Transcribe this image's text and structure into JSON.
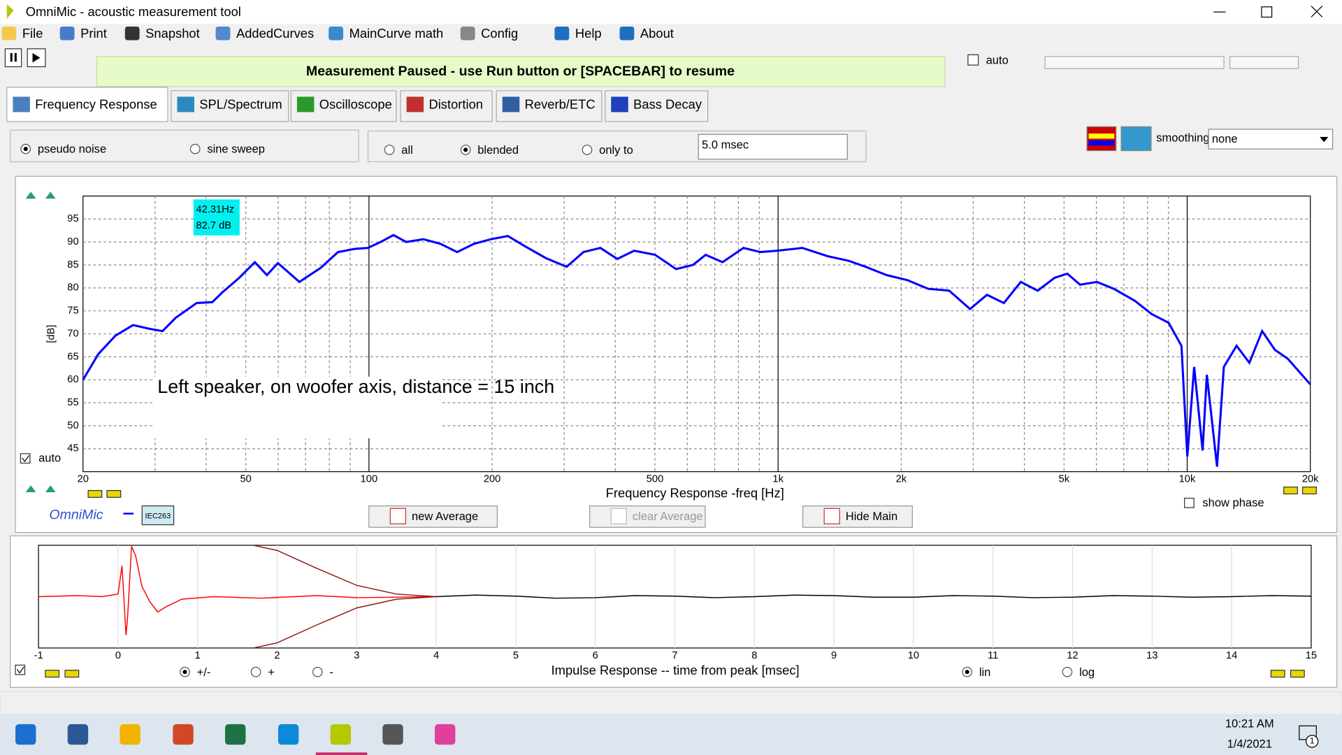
{
  "window": {
    "title": "OmniMic - acoustic measurement tool"
  },
  "menu": [
    "File",
    "Print",
    "Snapshot",
    "AddedCurves",
    "MainCurve math",
    "Config",
    "Help",
    "About"
  ],
  "status": "Measurement Paused - use Run button or [SPACEBAR] to resume",
  "auto_option": {
    "label": "auto",
    "checked": false
  },
  "tabs": {
    "items": [
      "Frequency Response",
      "SPL/Spectrum",
      "Oscilloscope",
      "Distortion",
      "Reverb/ETC",
      "Bass Decay"
    ],
    "active": 0
  },
  "signal": {
    "options": [
      "pseudo noise",
      "sine sweep"
    ],
    "selected": 0
  },
  "window_mode": {
    "options": [
      "all",
      "blended",
      "only to"
    ],
    "selected": 1
  },
  "window_time": "5.0 msec",
  "smoothing": {
    "label": "smoothing",
    "value": "none"
  },
  "chart_data": [
    {
      "type": "line",
      "xlabel": "Frequency Response -freq [Hz]",
      "ylabel": "[dB]",
      "log_x": true,
      "xlim": [
        20,
        20000
      ],
      "ylim": [
        40,
        100
      ],
      "xticks": [
        20,
        50,
        100,
        200,
        500,
        {
          "value": 1000,
          "label": "1k"
        },
        {
          "value": 2000,
          "label": "2k"
        },
        {
          "value": 5000,
          "label": "5k"
        },
        {
          "value": 10000,
          "label": "10k"
        },
        {
          "value": 20000,
          "label": "20k"
        }
      ],
      "x_minor_ticks": [
        30,
        40,
        60,
        70,
        80,
        90,
        300,
        400,
        600,
        700,
        800,
        900,
        3000,
        4000,
        6000,
        7000,
        8000,
        9000
      ],
      "yticks": [
        45,
        50,
        55,
        60,
        65,
        70,
        75,
        80,
        85,
        90,
        95
      ],
      "grid": true,
      "annotation": "Left speaker, on woofer axis, distance = 15 inch",
      "cursor": {
        "freq": "42.31Hz",
        "level": "82.7 dB"
      },
      "auto": {
        "label": "auto",
        "checked": true
      },
      "show_phase": {
        "label": "show phase",
        "checked": false
      },
      "series": [
        {
          "color": "#0000ff",
          "x": [
            20,
            21.8,
            24,
            26.5,
            29.1,
            31.3,
            33.7,
            37.9,
            41.4,
            43.9,
            48.2,
            52.6,
            56.3,
            59.9,
            67.6,
            76.3,
            84,
            92.4,
            99.4,
            106.8,
            114.8,
            123.3,
            135.8,
            149.4,
            164.3,
            180.7,
            198.7,
            218.5,
            240.3,
            270.4,
            304.2,
            334.5,
            367.9,
            404.6,
            445,
            500.6,
            563.3,
            619.5,
            665.2,
            731.6,
            823,
            905,
            995,
            1147,
            1322,
            1488,
            1636,
            1840,
            2070,
            2328,
            2619,
            2946,
            3241,
            3564,
            3920,
            4311,
            4742,
            5094,
            5472,
            6018,
            6619,
            7449,
            8193,
            9011,
            9683,
            10008,
            10401,
            10907,
            11170,
            11830,
            12291,
            13206,
            14191,
            15249,
            16386,
            17608,
            20000
          ],
          "values": [
            60,
            65.6,
            69.6,
            71.9,
            71.1,
            70.6,
            73.5,
            76.7,
            76.9,
            79.1,
            82.2,
            85.6,
            82.8,
            85.4,
            81.3,
            84.4,
            87.8,
            88.5,
            88.7,
            90,
            91.5,
            90,
            90.6,
            89.6,
            87.8,
            89.6,
            90.6,
            91.3,
            89.1,
            86.5,
            84.6,
            87.8,
            88.7,
            86.3,
            88.1,
            87.2,
            84.1,
            85,
            87.2,
            85.6,
            88.7,
            87.8,
            88.1,
            88.7,
            86.9,
            85.9,
            84.6,
            82.8,
            81.7,
            79.8,
            79.4,
            75.4,
            78.5,
            76.7,
            81.3,
            79.4,
            82.2,
            83.1,
            80.7,
            81.3,
            79.8,
            77.2,
            74.3,
            72.4,
            67.4,
            43.3,
            62.8,
            44.6,
            61.1,
            41.1,
            62.8,
            67.4,
            63.7,
            70.6,
            66.5,
            64.6,
            59
          ]
        }
      ]
    },
    {
      "type": "line",
      "xlabel": "Impulse Response  -- time from peak [msec]",
      "xlim": [
        -1,
        15
      ],
      "ylim": [
        -1,
        1
      ],
      "xticks": [
        -1,
        0,
        1,
        2,
        3,
        4,
        5,
        6,
        7,
        8,
        9,
        10,
        11,
        12,
        13,
        14,
        15
      ],
      "grid": true,
      "polarity": {
        "options": [
          "+/-",
          "+",
          "-"
        ],
        "selected": 0
      },
      "scale": {
        "options": [
          "lin",
          "log"
        ],
        "selected": 0
      },
      "series": [
        {
          "color": "#ff0000",
          "x": [
            -1,
            -0.5,
            -0.2,
            0,
            0.05,
            0.1,
            0.12,
            0.17,
            0.22,
            0.3,
            0.4,
            0.5,
            0.6,
            0.8,
            1.2,
            1.8,
            2.5,
            3,
            4
          ],
          "values": [
            0,
            0.02,
            0,
            0.05,
            0.6,
            -0.75,
            -0.4,
            0.98,
            0.8,
            0.2,
            -0.1,
            -0.3,
            -0.2,
            -0.05,
            0,
            -0.03,
            0.02,
            -0.02,
            0
          ]
        },
        {
          "color": "#000000",
          "x": [
            4,
            4.5,
            5,
            5.5,
            6,
            6.5,
            7,
            7.5,
            8,
            8.5,
            9,
            9.5,
            10,
            10.5,
            11,
            11.5,
            12,
            12.5,
            13,
            13.5,
            14,
            14.5,
            15
          ],
          "values": [
            0,
            0.03,
            0.01,
            -0.03,
            -0.02,
            0.02,
            0.01,
            -0.02,
            0,
            0.03,
            0.02,
            -0.01,
            -0.01,
            0.02,
            0.01,
            -0.02,
            -0.01,
            0.02,
            0.01,
            -0.01,
            0,
            0.02,
            0.01
          ]
        },
        {
          "color": "#8b1a1a",
          "x": [
            1.7,
            2,
            2.5,
            3,
            3.5,
            4
          ],
          "values": [
            1,
            0.9,
            0.55,
            0.22,
            0.05,
            0
          ]
        },
        {
          "color": "#8b1a1a",
          "x": [
            1.7,
            2,
            2.5,
            3,
            3.5,
            4
          ],
          "values": [
            -1,
            -0.9,
            -0.55,
            -0.22,
            -0.05,
            0
          ]
        }
      ]
    }
  ],
  "buttons": [
    "new Average",
    "clear Average",
    "Hide Main"
  ],
  "logo": {
    "name": "OmniMic",
    "mic": "IEC263"
  },
  "taskbar": {
    "time": "10:21 AM",
    "date": "1/4/2021",
    "notifications": "1"
  }
}
